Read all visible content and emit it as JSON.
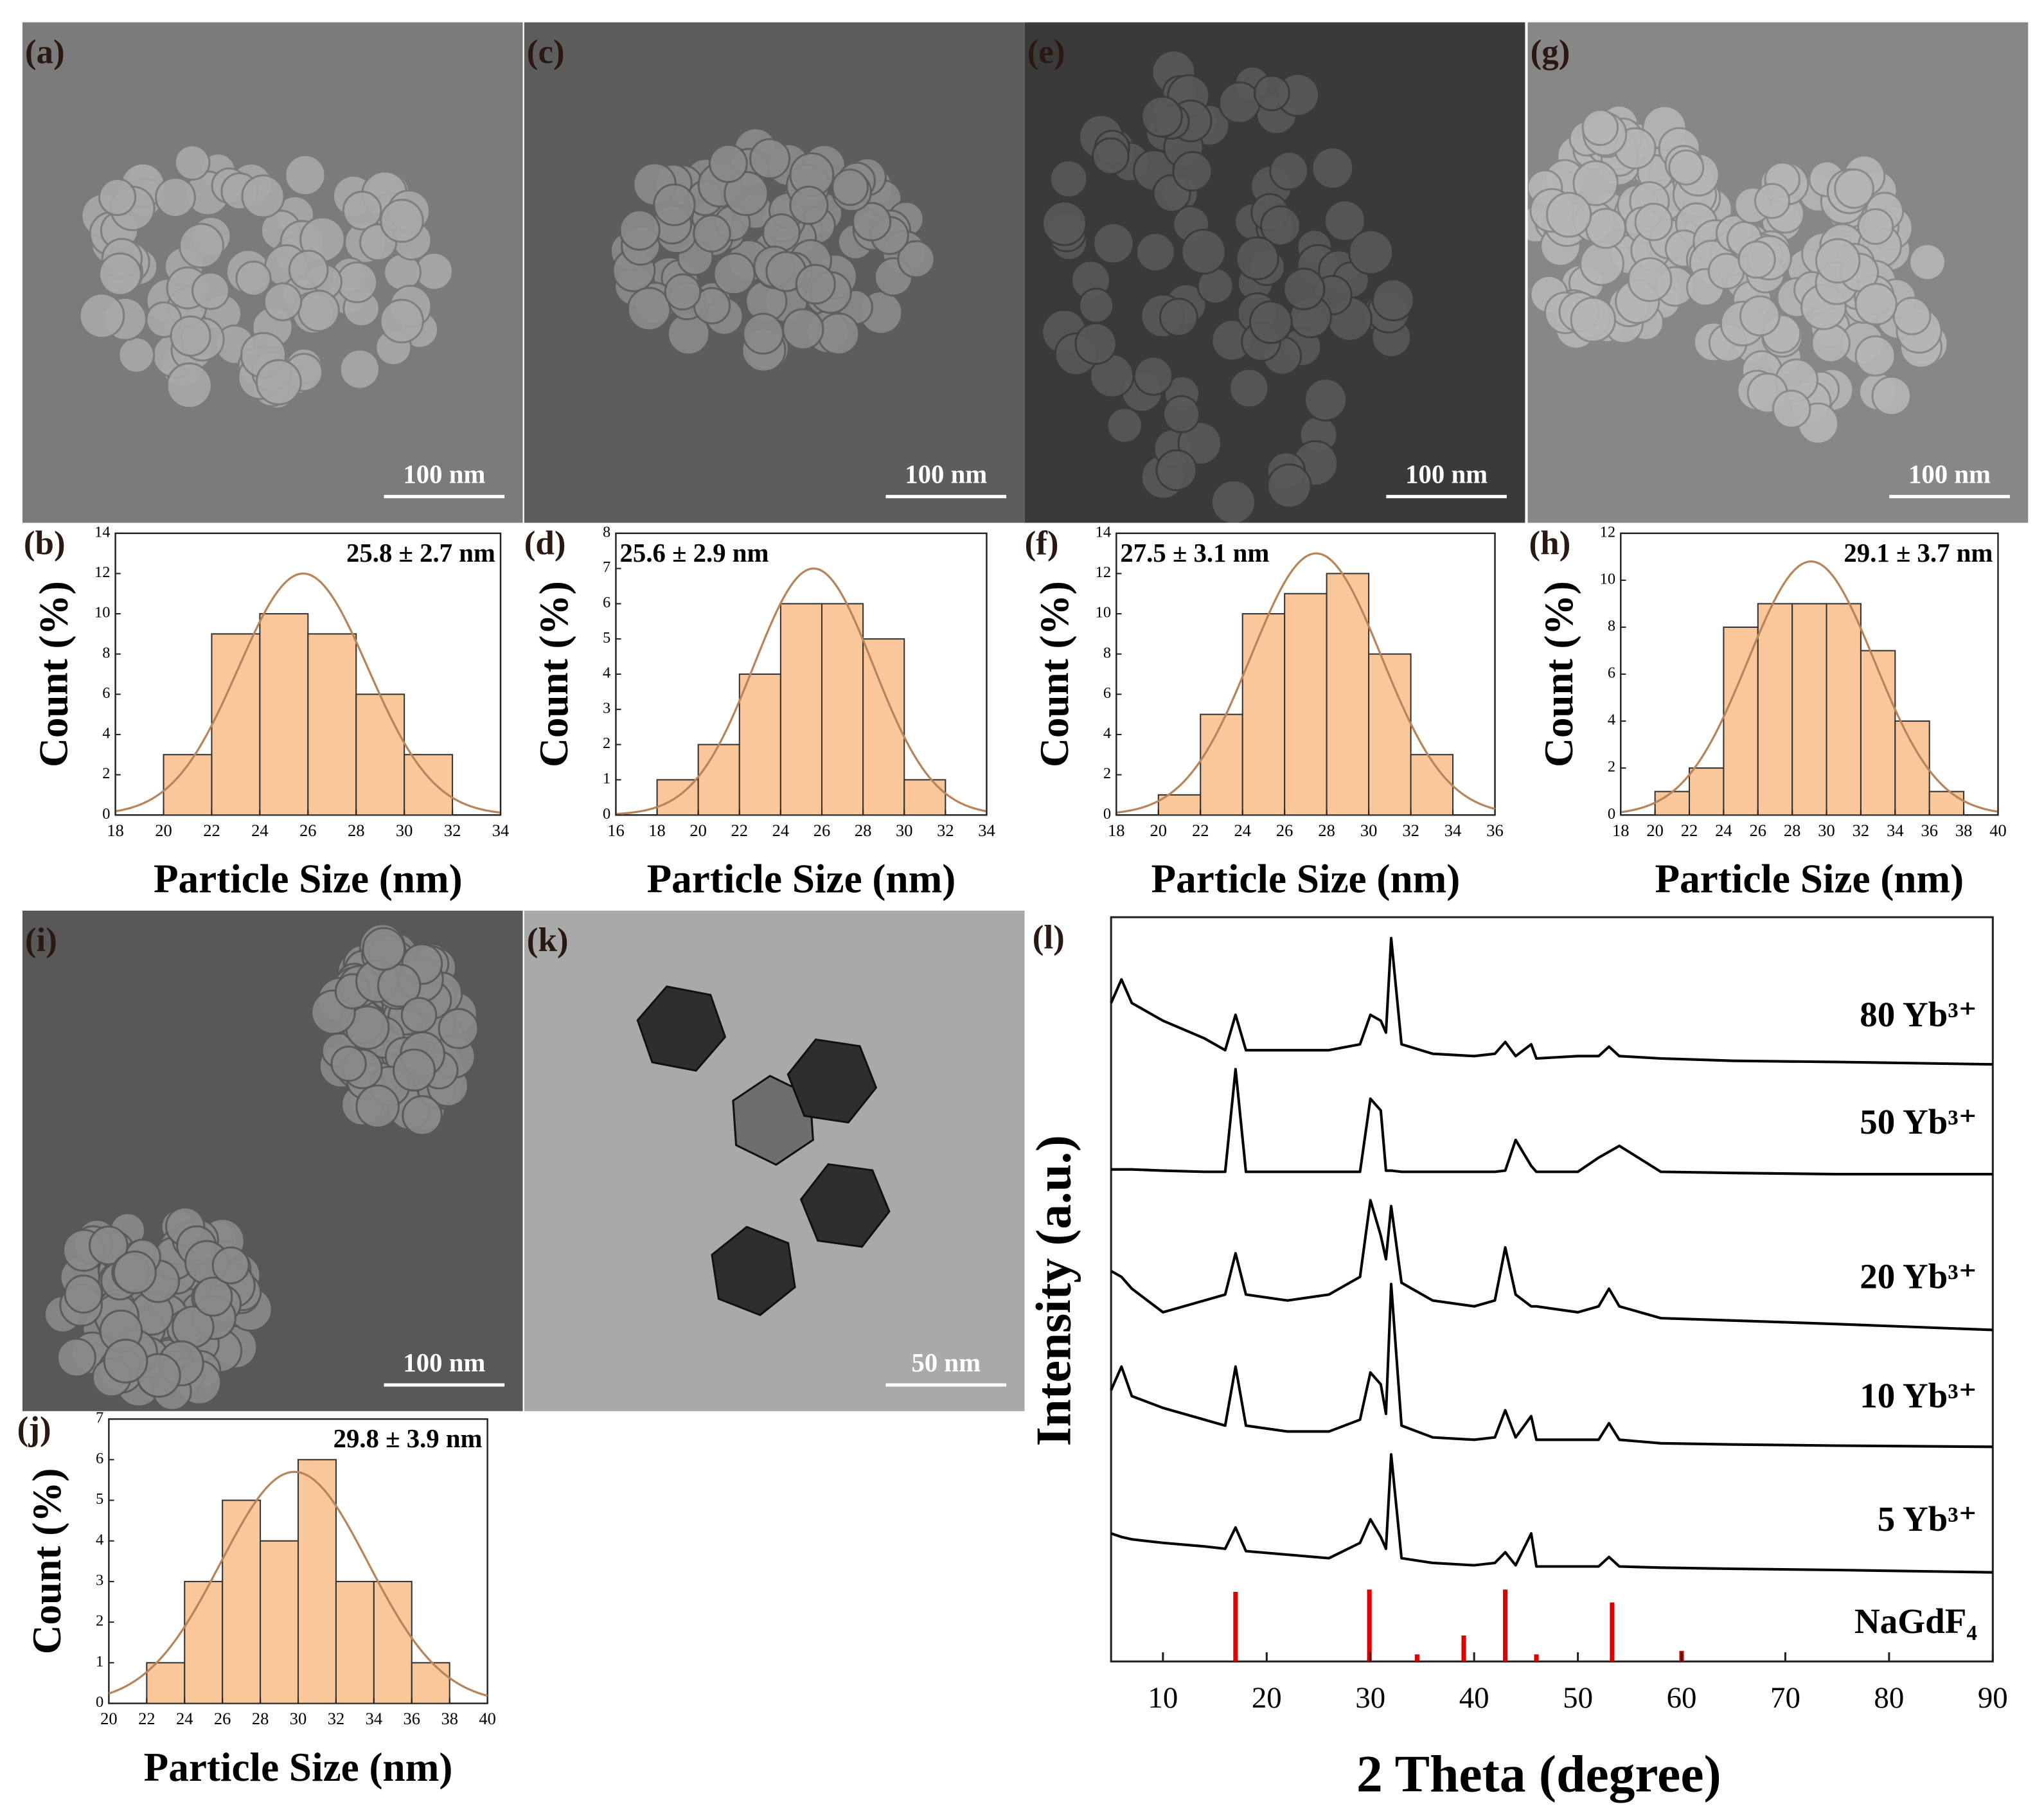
{
  "images": [
    {
      "label": "(a)",
      "scale_bar": "100 nm"
    },
    {
      "label": "(c)",
      "scale_bar": "100 nm"
    },
    {
      "label": "(e)",
      "scale_bar": "100 nm"
    },
    {
      "label": "(g)",
      "scale_bar": "100 nm"
    },
    {
      "label": "(i)",
      "scale_bar": "100 nm"
    },
    {
      "label": "(k)",
      "scale_bar": "50 nm"
    }
  ],
  "chart_data": [
    {
      "type": "histogram",
      "label": "(b)",
      "annotation": "25.8 ± 2.7 nm",
      "x_label": "Particle Size (nm)",
      "y_label": "Count (%)",
      "bins": [
        20,
        22,
        24,
        26,
        28,
        30,
        32
      ],
      "values": [
        3,
        9,
        10,
        9,
        6,
        3
      ],
      "color": "#f9c79a",
      "fit": {
        "mean": 25.8,
        "sd": 2.7,
        "peak": 12,
        "color": "#b7855b"
      },
      "xlim": [
        18,
        34
      ],
      "xticks": [
        18,
        20,
        22,
        24,
        26,
        28,
        30,
        32,
        34
      ],
      "ylim": [
        0,
        14
      ],
      "yticks": [
        0,
        2,
        4,
        6,
        8,
        10,
        12,
        14
      ]
    },
    {
      "type": "histogram",
      "label": "(d)",
      "annotation": "25.6 ± 2.9 nm",
      "x_label": "Particle Size (nm)",
      "y_label": "Count (%)",
      "bins": [
        18,
        20,
        22,
        24,
        26,
        28,
        30,
        32
      ],
      "values": [
        1,
        2,
        4,
        6,
        6,
        5,
        1
      ],
      "color": "#f9c79a",
      "fit": {
        "mean": 25.6,
        "sd": 2.9,
        "peak": 7,
        "color": "#b7855b"
      },
      "xlim": [
        16,
        34
      ],
      "xticks": [
        16,
        18,
        20,
        22,
        24,
        26,
        28,
        30,
        32,
        34
      ],
      "ylim": [
        0,
        8
      ],
      "yticks": [
        0,
        1,
        2,
        3,
        4,
        5,
        6,
        7,
        8
      ]
    },
    {
      "type": "histogram",
      "label": "(f)",
      "annotation": "27.5 ± 3.1 nm",
      "x_label": "Particle Size (nm)",
      "y_label": "Count (%)",
      "bins": [
        20,
        22,
        24,
        26,
        28,
        30,
        32,
        34
      ],
      "values": [
        1,
        5,
        10,
        11,
        12,
        8,
        3
      ],
      "color": "#f9c79a",
      "fit": {
        "mean": 27.5,
        "sd": 3.1,
        "peak": 13,
        "color": "#b7855b"
      },
      "xlim": [
        18,
        36
      ],
      "xticks": [
        18,
        20,
        22,
        24,
        26,
        28,
        30,
        32,
        34,
        36
      ],
      "ylim": [
        0,
        14
      ],
      "yticks": [
        0,
        2,
        4,
        6,
        8,
        10,
        12,
        14
      ]
    },
    {
      "type": "histogram",
      "label": "(h)",
      "annotation": "29.1 ± 3.7 nm",
      "x_label": "Particle Size (nm)",
      "y_label": "Count (%)",
      "bins": [
        20,
        22,
        24,
        26,
        28,
        30,
        32,
        34,
        36,
        38
      ],
      "values": [
        1,
        2,
        8,
        9,
        9,
        9,
        7,
        4,
        1
      ],
      "color": "#f9c79a",
      "fit": {
        "mean": 29.1,
        "sd": 3.7,
        "peak": 10.8,
        "color": "#b7855b"
      },
      "xlim": [
        18,
        40
      ],
      "xticks": [
        18,
        20,
        22,
        24,
        26,
        28,
        30,
        32,
        34,
        36,
        38,
        40
      ],
      "ylim": [
        0,
        12
      ],
      "yticks": [
        0,
        2,
        4,
        6,
        8,
        10,
        12
      ]
    },
    {
      "type": "histogram",
      "label": "(j)",
      "annotation": "29.8 ± 3.9 nm",
      "x_label": "Particle Size (nm)",
      "y_label": "Count (%)",
      "bins": [
        22,
        24,
        26,
        28,
        30,
        32,
        34,
        36,
        38
      ],
      "values": [
        1,
        3,
        5,
        4,
        6,
        3,
        3,
        1
      ],
      "color": "#f9c79a",
      "fit": {
        "mean": 29.8,
        "sd": 3.9,
        "peak": 5.7,
        "color": "#b7855b"
      },
      "xlim": [
        20,
        40
      ],
      "xticks": [
        20,
        22,
        24,
        26,
        28,
        30,
        32,
        34,
        36,
        38,
        40
      ],
      "ylim": [
        0,
        7
      ],
      "yticks": [
        0,
        1,
        2,
        3,
        4,
        5,
        6,
        7
      ]
    },
    {
      "type": "line",
      "label": "(l)",
      "x_label": "2 Theta (degree)",
      "y_label": "Intensity (a.u.)",
      "x": [
        5,
        6,
        7,
        10,
        14,
        16,
        17,
        18,
        22,
        26,
        29,
        30,
        31,
        31.5,
        32,
        33,
        36,
        40,
        42,
        43,
        44,
        45.5,
        46,
        50,
        52,
        53,
        54,
        58,
        65,
        75,
        90
      ],
      "series": [
        {
          "name": "80 Yb³⁺",
          "color": "#000000",
          "values": [
            55,
            75,
            55,
            40,
            25,
            15,
            45,
            15,
            15,
            15,
            20,
            45,
            40,
            30,
            110,
            20,
            12,
            10,
            12,
            22,
            10,
            20,
            8,
            10,
            10,
            18,
            10,
            8,
            6,
            5,
            3
          ]
        },
        {
          "name": "50 Yb³⁺",
          "color": "#000000",
          "values": [
            5,
            5,
            5,
            4,
            3,
            3,
            90,
            3,
            3,
            3,
            3,
            65,
            55,
            4,
            4,
            3,
            3,
            3,
            3,
            4,
            30,
            8,
            3,
            3,
            15,
            20,
            25,
            3,
            2,
            1,
            1
          ]
        },
        {
          "name": "20 Yb³⁺",
          "color": "#000000",
          "values": [
            50,
            45,
            35,
            15,
            25,
            30,
            65,
            30,
            25,
            30,
            45,
            110,
            80,
            60,
            105,
            40,
            25,
            20,
            25,
            70,
            30,
            20,
            20,
            15,
            20,
            35,
            20,
            10,
            8,
            5,
            0
          ]
        },
        {
          "name": "10 Yb³⁺",
          "color": "#000000",
          "values": [
            50,
            70,
            45,
            35,
            25,
            20,
            70,
            20,
            15,
            15,
            25,
            65,
            55,
            30,
            140,
            20,
            10,
            8,
            10,
            33,
            10,
            28,
            8,
            8,
            8,
            22,
            8,
            5,
            4,
            3,
            2
          ]
        },
        {
          "name": "5 Yb³⁺",
          "color": "#000000",
          "values": [
            33,
            30,
            28,
            25,
            22,
            20,
            38,
            18,
            15,
            12,
            25,
            45,
            30,
            20,
            100,
            12,
            8,
            6,
            8,
            17,
            6,
            33,
            5,
            5,
            5,
            13,
            5,
            4,
            3,
            2,
            0
          ]
        }
      ],
      "reference": {
        "name": "NaGdF₄",
        "color": "#e00000",
        "x": [
          17,
          29.9,
          34.5,
          39,
          43,
          46,
          53.3,
          60
        ],
        "values": [
          59,
          61,
          6,
          22,
          61,
          6,
          50,
          9
        ]
      },
      "xlim": [
        5,
        90
      ],
      "xticks": [
        10,
        20,
        30,
        40,
        50,
        60,
        70,
        80,
        90
      ]
    }
  ]
}
